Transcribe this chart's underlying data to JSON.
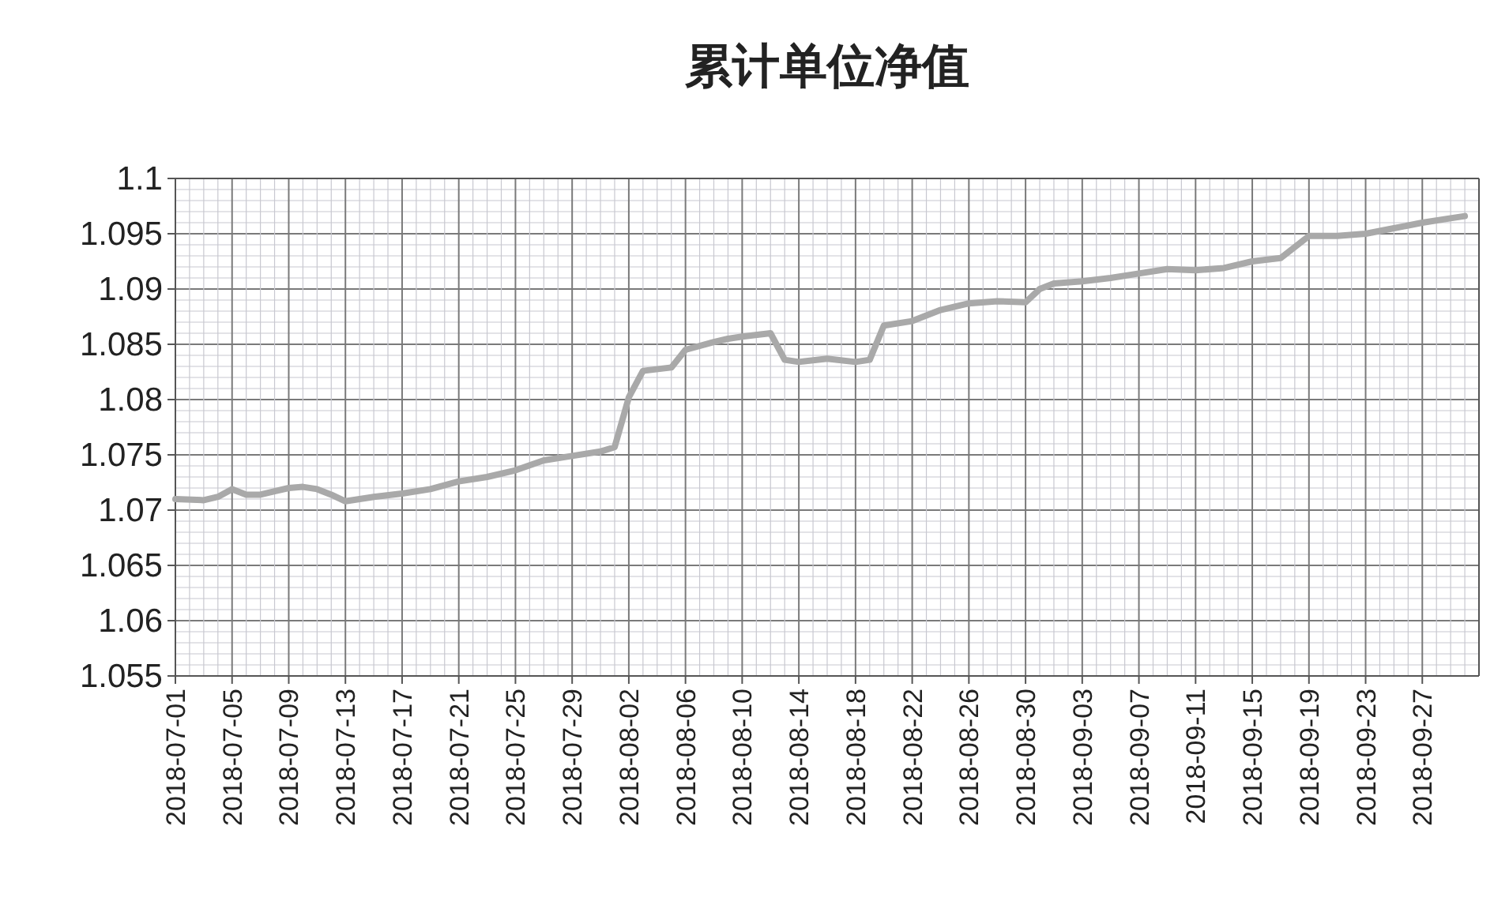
{
  "chart_data": {
    "type": "line",
    "title": "累计单位净值",
    "x": [
      "2018-07-01",
      "2018-07-03",
      "2018-07-04",
      "2018-07-05",
      "2018-07-06",
      "2018-07-07",
      "2018-07-08",
      "2018-07-09",
      "2018-07-10",
      "2018-07-11",
      "2018-07-12",
      "2018-07-13",
      "2018-07-15",
      "2018-07-17",
      "2018-07-19",
      "2018-07-21",
      "2018-07-23",
      "2018-07-25",
      "2018-07-27",
      "2018-07-29",
      "2018-07-31",
      "2018-08-01",
      "2018-08-02",
      "2018-08-03",
      "2018-08-05",
      "2018-08-06",
      "2018-08-08",
      "2018-08-09",
      "2018-08-10",
      "2018-08-12",
      "2018-08-13",
      "2018-08-14",
      "2018-08-16",
      "2018-08-18",
      "2018-08-19",
      "2018-08-20",
      "2018-08-22",
      "2018-08-24",
      "2018-08-26",
      "2018-08-28",
      "2018-08-30",
      "2018-08-31",
      "2018-09-01",
      "2018-09-03",
      "2018-09-05",
      "2018-09-07",
      "2018-09-09",
      "2018-09-11",
      "2018-09-13",
      "2018-09-15",
      "2018-09-17",
      "2018-09-19",
      "2018-09-21",
      "2018-09-23",
      "2018-09-25",
      "2018-09-27",
      "2018-09-29",
      "2018-09-30"
    ],
    "series": [
      {
        "color": "#a9a9a9",
        "values": [
          1.071,
          1.0709,
          1.0712,
          1.0719,
          1.0714,
          1.0714,
          1.0717,
          1.072,
          1.0721,
          1.0719,
          1.0714,
          1.0708,
          1.0712,
          1.0715,
          1.0719,
          1.0726,
          1.073,
          1.0736,
          1.0745,
          1.0749,
          1.0753,
          1.0757,
          1.0802,
          1.0826,
          1.0829,
          1.0845,
          1.0852,
          1.0855,
          1.0857,
          1.086,
          1.0836,
          1.0834,
          1.0837,
          1.0834,
          1.0836,
          1.0867,
          1.0871,
          1.0881,
          1.0887,
          1.0889,
          1.0888,
          1.09,
          1.0905,
          1.0907,
          1.091,
          1.0914,
          1.0918,
          1.0917,
          1.0919,
          1.0925,
          1.0928,
          1.0948,
          1.0948,
          1.095,
          1.0955,
          1.096,
          1.0964,
          1.0966
        ]
      }
    ],
    "xlim": [
      "2018-07-01",
      "2018-10-01"
    ],
    "xticks": [
      "2018-07-01",
      "2018-07-05",
      "2018-07-09",
      "2018-07-13",
      "2018-07-17",
      "2018-07-21",
      "2018-07-25",
      "2018-07-29",
      "2018-08-02",
      "2018-08-06",
      "2018-08-10",
      "2018-08-14",
      "2018-08-18",
      "2018-08-22",
      "2018-08-26",
      "2018-08-30",
      "2018-09-03",
      "2018-09-07",
      "2018-09-11",
      "2018-09-15",
      "2018-09-19",
      "2018-09-23",
      "2018-09-27"
    ],
    "ylim": [
      1.055,
      1.1
    ],
    "yticks": [
      {
        "value": 1.055,
        "label": "1.055"
      },
      {
        "value": 1.06,
        "label": "1.06"
      },
      {
        "value": 1.065,
        "label": "1.065"
      },
      {
        "value": 1.07,
        "label": "1.07"
      },
      {
        "value": 1.075,
        "label": "1.075"
      },
      {
        "value": 1.08,
        "label": "1.08"
      },
      {
        "value": 1.085,
        "label": "1.085"
      },
      {
        "value": 1.09,
        "label": "1.09"
      },
      {
        "value": 1.095,
        "label": "1.095"
      },
      {
        "value": 1.1,
        "label": "1.1"
      }
    ],
    "grid": true,
    "marker": "none",
    "line_style": "solid"
  }
}
